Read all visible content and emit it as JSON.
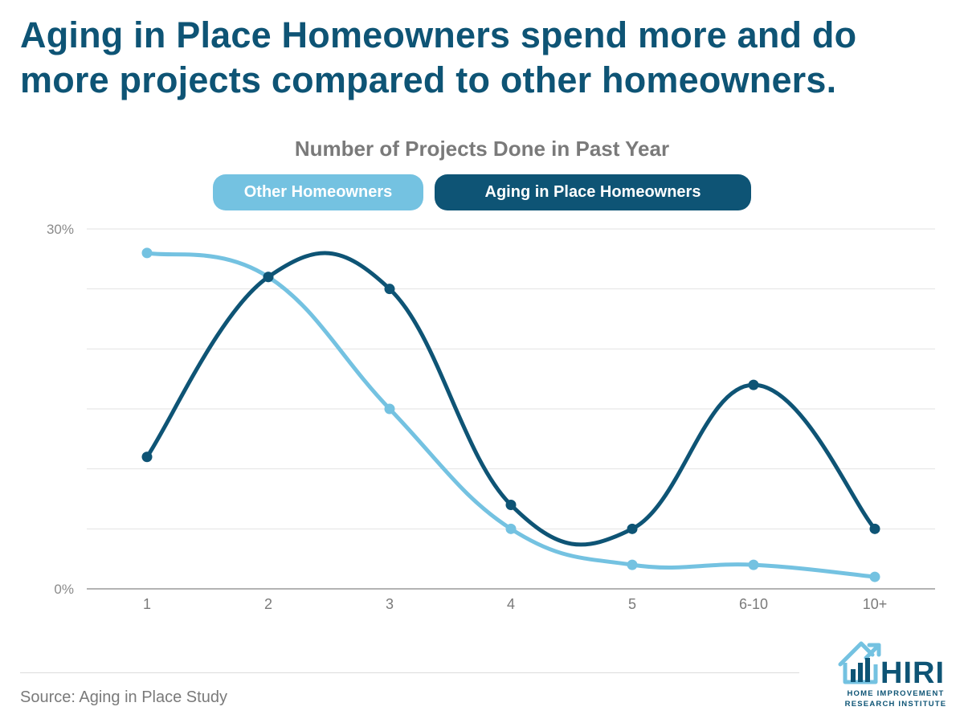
{
  "headline": "Aging in Place Homeowners spend more and do more projects compared to other homeowners.",
  "colors": {
    "title": "#0e5475",
    "other": "#74c2e1",
    "aging": "#0e5475",
    "grid": "#e2e2e2",
    "axis": "#9a9a9a"
  },
  "chart_data": {
    "type": "line",
    "title": "Number of Projects Done in Past Year",
    "xlabel": "",
    "ylabel": "",
    "categories": [
      "1",
      "2",
      "3",
      "4",
      "5",
      "6-10",
      "10+"
    ],
    "ylim": [
      0,
      30
    ],
    "y_tick_labels": [
      "30%",
      "0%"
    ],
    "gridlines": 6,
    "legend_position": "top-center",
    "series": [
      {
        "name": "Other Homeowners",
        "values": [
          28,
          26,
          15,
          5,
          2,
          2,
          1
        ]
      },
      {
        "name": "Aging in Place Homeowners",
        "values": [
          11,
          26,
          25,
          7,
          5,
          17,
          5
        ]
      }
    ]
  },
  "footer": {
    "source": "Source: Aging in Place Study",
    "logo_name": "HIRI",
    "logo_tagline": "Home Improvement Research Institute"
  }
}
